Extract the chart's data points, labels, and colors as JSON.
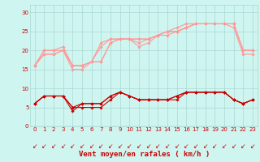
{
  "x": [
    0,
    1,
    2,
    3,
    4,
    5,
    6,
    7,
    8,
    9,
    10,
    11,
    12,
    13,
    14,
    15,
    16,
    17,
    18,
    19,
    20,
    21,
    22,
    23
  ],
  "line1": [
    16,
    19,
    19,
    20,
    15,
    15,
    17,
    17,
    22,
    23,
    23,
    21,
    22,
    24,
    25,
    26,
    27,
    27,
    27,
    27,
    27,
    26,
    19,
    19
  ],
  "line2": [
    16,
    20,
    20,
    20,
    16,
    16,
    17,
    22,
    23,
    23,
    23,
    23,
    23,
    24,
    25,
    25,
    26,
    27,
    27,
    27,
    27,
    27,
    20,
    20
  ],
  "line3": [
    16,
    19,
    19,
    20,
    16,
    16,
    17,
    17,
    22,
    23,
    23,
    22,
    23,
    24,
    24,
    25,
    26,
    27,
    27,
    27,
    27,
    27,
    20,
    20
  ],
  "line4": [
    16,
    20,
    20,
    21,
    16,
    16,
    17,
    21,
    23,
    23,
    23,
    23,
    23,
    24,
    25,
    25,
    26,
    27,
    27,
    27,
    27,
    27,
    20,
    20
  ],
  "line5": [
    6,
    8,
    8,
    8,
    5,
    6,
    6,
    6,
    8,
    9,
    8,
    7,
    7,
    7,
    7,
    8,
    9,
    9,
    9,
    9,
    9,
    7,
    6,
    7
  ],
  "line6": [
    6,
    8,
    8,
    8,
    4,
    6,
    6,
    6,
    8,
    9,
    8,
    7,
    7,
    7,
    7,
    8,
    9,
    9,
    9,
    9,
    9,
    7,
    6,
    7
  ],
  "line7": [
    6,
    8,
    8,
    8,
    5,
    5,
    5,
    5,
    7,
    9,
    8,
    7,
    7,
    7,
    7,
    7,
    9,
    9,
    9,
    9,
    9,
    7,
    6,
    7
  ],
  "bg_color": "#cef5f0",
  "grid_color": "#aad8d3",
  "text_color": "#cc0000",
  "pink_color": "#ff9999",
  "dark_red": "#cc0000",
  "xlabel": "Vent moyen/en rafales ( km/h )",
  "ylim": [
    0,
    32
  ],
  "xlim": [
    -0.5,
    23.5
  ],
  "yticks": [
    0,
    5,
    10,
    15,
    20,
    25,
    30
  ],
  "xticks": [
    0,
    1,
    2,
    3,
    4,
    5,
    6,
    7,
    8,
    9,
    10,
    11,
    12,
    13,
    14,
    15,
    16,
    17,
    18,
    19,
    20,
    21,
    22,
    23
  ]
}
